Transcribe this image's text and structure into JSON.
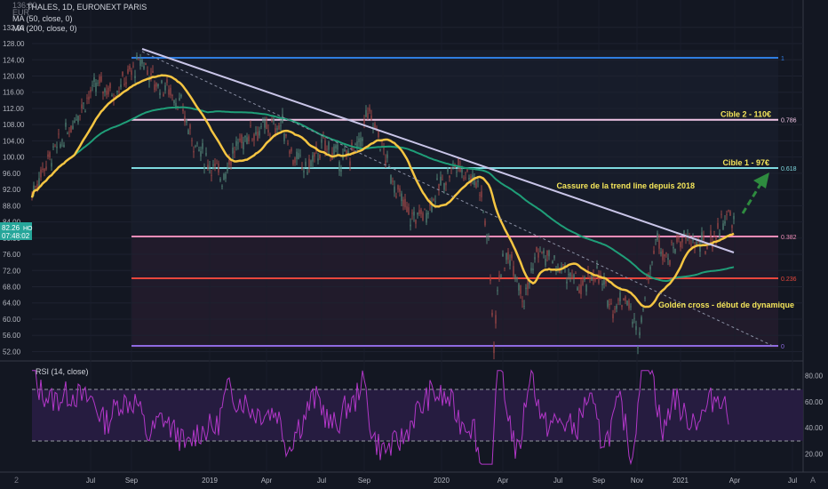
{
  "header": {
    "title": "THALES, 1D, EURONEXT PARIS",
    "ma50": "MA (50, close, 0)",
    "ma200": "MA (200, close, 0)",
    "currency": "EUR",
    "top_tick": "136.00"
  },
  "price_tag": {
    "value": "82.26",
    "suffix": "HO",
    "time": "07:48:02"
  },
  "rsi_label": "RSI (14, close)",
  "bottom_left": "2",
  "bottom_right": "A",
  "colors": {
    "background": "#131722",
    "ma50": "#f5c542",
    "ma200": "#1f9e78",
    "trendline": "#c9c5e8",
    "rsi": "#b237c8",
    "fib_1": "#2f7de1",
    "fib_0786": "#f2c6e7",
    "fib_0618": "#7ed9df",
    "fib_0382": "#f08db8",
    "fib_0236": "#e7473c",
    "fib_0": "#8e6ae0",
    "arrow": "#2e8b3f"
  },
  "chart_data": [
    {
      "type": "line",
      "name": "price-chart",
      "x_ticks": [
        "Jul",
        "Sep",
        "2019",
        "Apr",
        "Jul",
        "Sep",
        "2020",
        "Apr",
        "Jul",
        "Sep",
        "Nov",
        "2021",
        "Apr",
        "Jul"
      ],
      "y_ticks": [
        "52.00",
        "56.00",
        "60.00",
        "64.00",
        "68.00",
        "72.00",
        "76.00",
        "80.00",
        "84.00",
        "88.00",
        "92.00",
        "96.00",
        "100.00",
        "104.00",
        "108.00",
        "112.00",
        "116.00",
        "120.00",
        "124.00",
        "128.00",
        "132.00"
      ],
      "ylim": [
        51,
        137
      ],
      "fib_levels": [
        {
          "ratio": "1",
          "price": 124.5
        },
        {
          "ratio": "0.786",
          "price": 109.2
        },
        {
          "ratio": "0.618",
          "price": 97.3
        },
        {
          "ratio": "0.382",
          "price": 80.4
        },
        {
          "ratio": "0.236",
          "price": 70.1
        },
        {
          "ratio": "0",
          "price": 53.4
        }
      ],
      "annotations": [
        {
          "text": "Cible 2 - 110€",
          "price": 109.2
        },
        {
          "text": "Cible 1 - 97€",
          "price": 97.3
        },
        {
          "text": "Cassure de la trend line depuis 2018",
          "price": 92.0
        },
        {
          "text": "Golden cross - début de dynamique",
          "price": 63.6
        }
      ],
      "last_price": 82.26
    },
    {
      "type": "line",
      "name": "rsi-chart",
      "title": "RSI (14, close)",
      "y_ticks": [
        "20.00",
        "40.00",
        "60.00",
        "80.00"
      ],
      "ylim": [
        8,
        90
      ],
      "bands": [
        70,
        30
      ]
    }
  ]
}
